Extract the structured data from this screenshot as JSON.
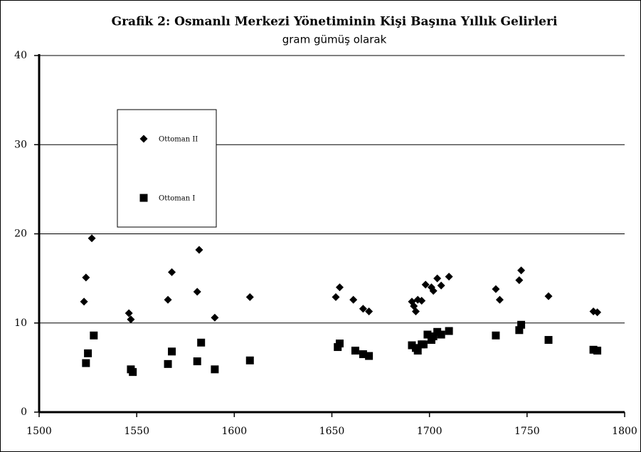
{
  "chart_data": {
    "type": "scatter",
    "title": "Grafik 2: Osmanlı Merkezi Yönetiminin Kişi Başına Yıllık Gelirleri",
    "subtitle": "gram gümüş olarak",
    "xlim": [
      1500,
      1800
    ],
    "xticks": [
      1500,
      1550,
      1600,
      1650,
      1700,
      1750,
      1800
    ],
    "ylim": [
      0,
      40
    ],
    "yticks": [
      0,
      10,
      20,
      30,
      40
    ],
    "grid": true,
    "legend": "upper left",
    "series": [
      {
        "name": "Ottoman II",
        "marker": "diamond",
        "color": "#000000",
        "x": [
          1523,
          1524,
          1527,
          1546,
          1547,
          1566,
          1568,
          1581,
          1582,
          1590,
          1608,
          1652,
          1654,
          1661,
          1666,
          1669,
          1691,
          1692,
          1694,
          1693,
          1696,
          1698,
          1701,
          1702,
          1704,
          1706,
          1710,
          1734,
          1736,
          1747,
          1746,
          1761,
          1784,
          1786
        ],
        "values": [
          12.4,
          15.1,
          19.5,
          11.1,
          10.4,
          12.6,
          15.7,
          13.5,
          18.2,
          10.6,
          12.9,
          12.9,
          14.0,
          12.6,
          11.6,
          11.3,
          12.4,
          11.9,
          12.6,
          11.3,
          12.5,
          14.3,
          14.0,
          13.6,
          15.0,
          14.2,
          15.2,
          13.8,
          12.6,
          15.9,
          14.8,
          13.0,
          11.3,
          11.2
        ]
      },
      {
        "name": "Ottoman I",
        "marker": "square",
        "color": "#000000",
        "x": [
          1524,
          1525,
          1528,
          1547,
          1548,
          1566,
          1568,
          1581,
          1583,
          1590,
          1608,
          1653,
          1654,
          1662,
          1666,
          1669,
          1691,
          1693,
          1694,
          1696,
          1697,
          1699,
          1701,
          1702,
          1704,
          1706,
          1710,
          1734,
          1746,
          1747,
          1761,
          1784,
          1786
        ],
        "values": [
          5.5,
          6.6,
          8.6,
          4.8,
          4.5,
          5.4,
          6.8,
          5.7,
          7.8,
          4.8,
          5.8,
          7.3,
          7.7,
          6.9,
          6.5,
          6.3,
          7.5,
          7.2,
          6.9,
          7.6,
          7.6,
          8.7,
          8.1,
          8.5,
          9.0,
          8.7,
          9.1,
          8.6,
          9.2,
          9.8,
          8.1,
          7.0,
          6.9
        ]
      }
    ]
  }
}
